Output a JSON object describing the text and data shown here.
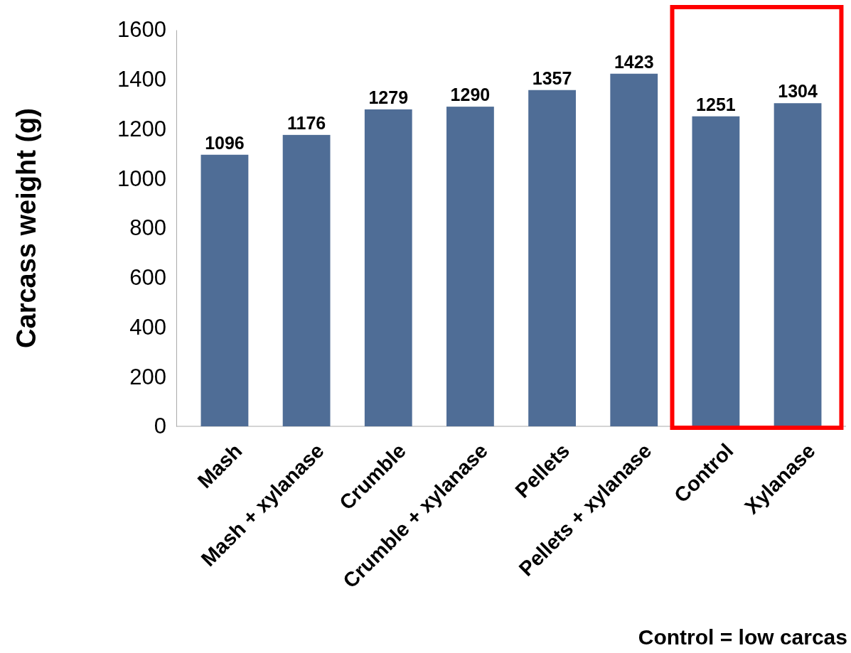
{
  "chart_data": {
    "type": "bar",
    "ylabel": "Carcass weight (g)",
    "categories": [
      "Mash",
      "Mash + xylanase",
      "Crumble",
      "Crumble + xylanase",
      "Pellets",
      "Pellets + xylanase",
      "Control",
      "Xylanase"
    ],
    "values": [
      1096,
      1176,
      1279,
      1290,
      1357,
      1423,
      1251,
      1304
    ],
    "color": "#4f6d96",
    "ylim": [
      0,
      1600
    ],
    "yticks": [
      0,
      200,
      400,
      600,
      800,
      1000,
      1200,
      1400,
      1600
    ],
    "grid": false,
    "data_labels": true,
    "annotations": [
      "Control = low carcas"
    ]
  }
}
